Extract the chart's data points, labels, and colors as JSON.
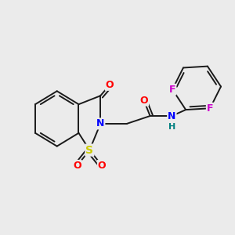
{
  "bg_color": "#ebebeb",
  "bond_color": "#1a1a1a",
  "atom_colors": {
    "O": "#ff0000",
    "N": "#0000ff",
    "S": "#cccc00",
    "F": "#cc00cc",
    "H": "#008080",
    "C": "#1a1a1a"
  },
  "figsize": [
    3.0,
    3.0
  ],
  "dpi": 100
}
